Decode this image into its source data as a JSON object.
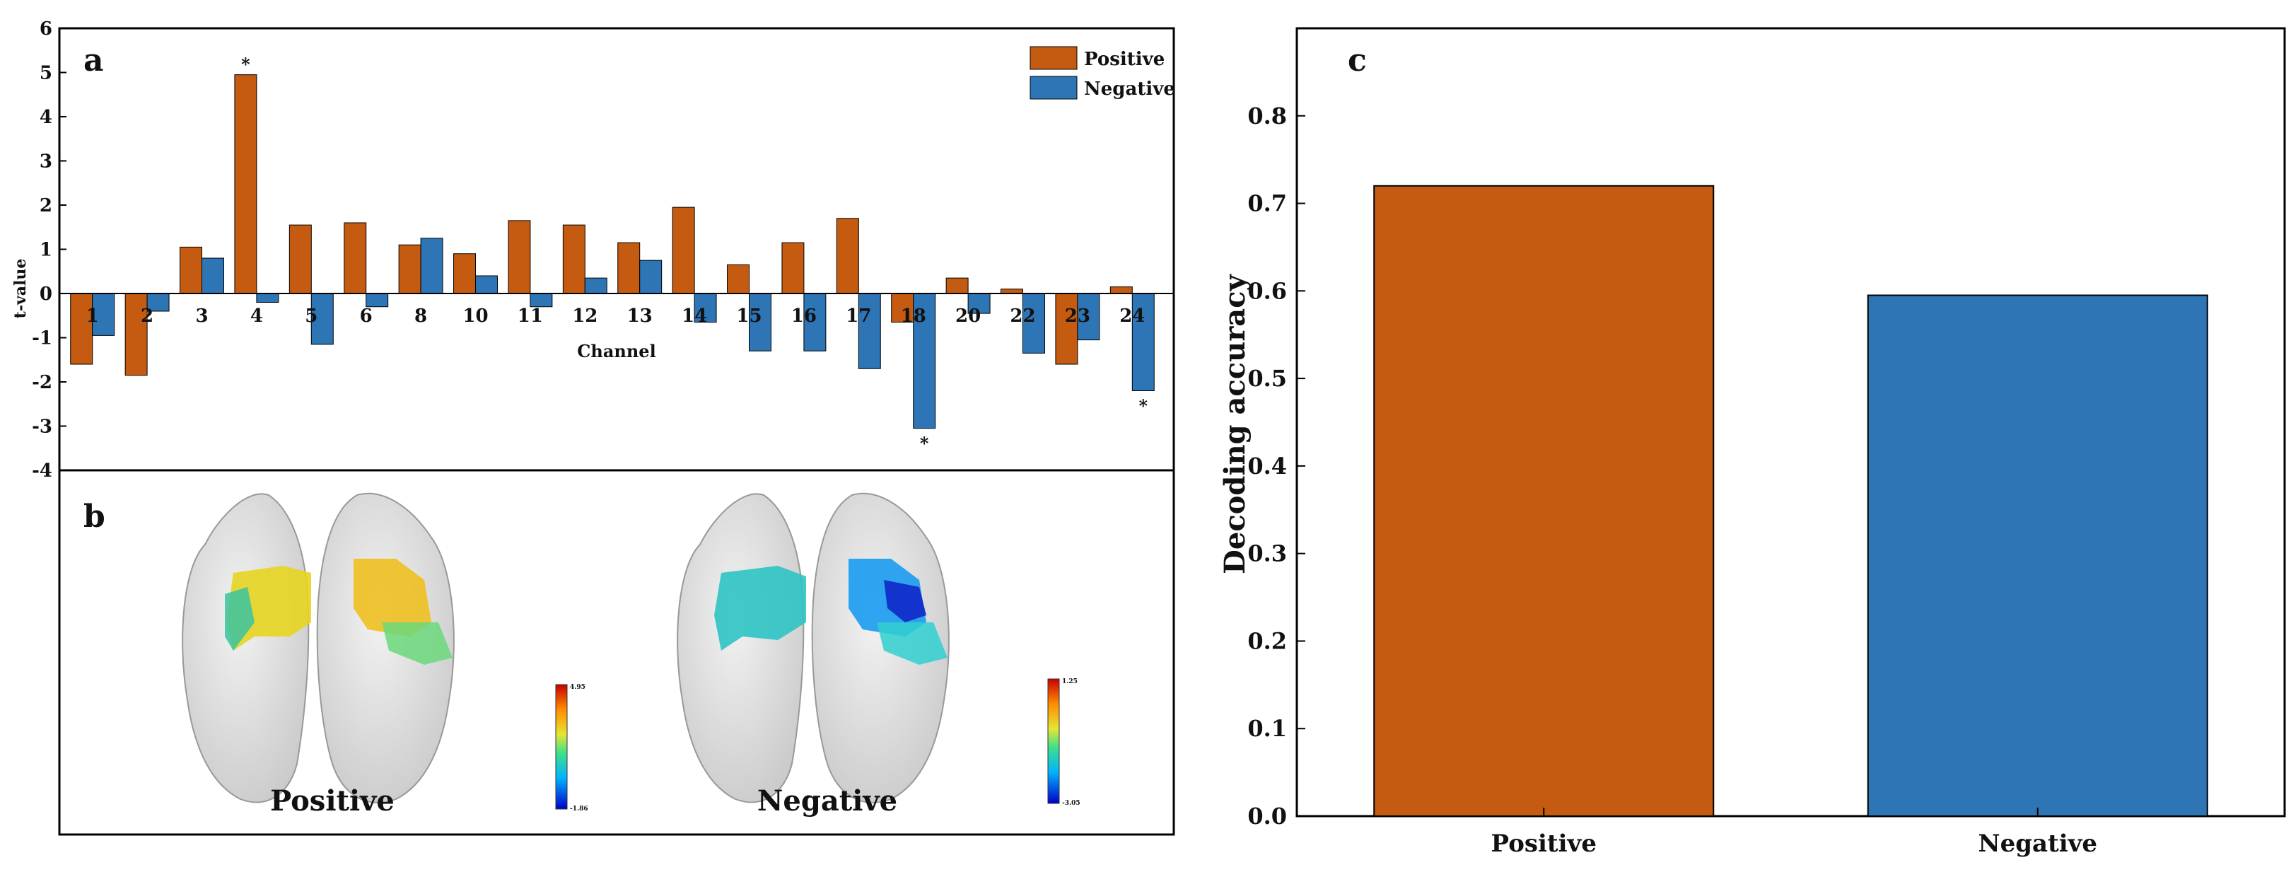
{
  "colors": {
    "positive": "#c55a11",
    "negative": "#2e75b6",
    "axis": "#000000",
    "brain": "#d9d9d9"
  },
  "chart_data": [
    {
      "panel": "a",
      "type": "bar",
      "ylabel": "t-value",
      "xlabel": "Channel",
      "ylim": [
        -4,
        6
      ],
      "yticks": [
        -4,
        -3,
        -2,
        -1,
        0,
        1,
        2,
        3,
        4,
        5,
        6
      ],
      "legend": "top-right",
      "categories": [
        "1",
        "2",
        "3",
        "4",
        "5",
        "6",
        "8",
        "10",
        "11",
        "12",
        "13",
        "14",
        "15",
        "16",
        "17",
        "18",
        "20",
        "22",
        "23",
        "24"
      ],
      "series": [
        {
          "name": "Positive",
          "color": "#c55a11",
          "values": [
            -1.6,
            -1.85,
            1.05,
            4.95,
            1.55,
            1.6,
            1.1,
            0.9,
            1.65,
            1.55,
            1.15,
            1.95,
            0.65,
            1.15,
            1.7,
            -0.65,
            0.35,
            0.1,
            -1.6,
            0.15
          ]
        },
        {
          "name": "Negative",
          "color": "#2e75b6",
          "values": [
            -0.95,
            -0.4,
            0.8,
            -0.2,
            -1.15,
            -0.3,
            1.25,
            0.4,
            -0.3,
            0.35,
            0.75,
            -0.65,
            -1.3,
            -1.3,
            -1.7,
            -3.05,
            -0.45,
            -1.35,
            -1.05,
            -2.2
          ]
        }
      ],
      "annotations": [
        {
          "category": "4",
          "series": "Positive",
          "text": "*"
        },
        {
          "category": "18",
          "series": "Negative",
          "text": "*"
        },
        {
          "category": "24",
          "series": "Negative",
          "text": "*"
        }
      ]
    },
    {
      "panel": "b",
      "type": "other",
      "description_labels": [
        "Positive",
        "Negative"
      ],
      "colorbars": [
        {
          "max": "4.95",
          "min": "-1.86"
        },
        {
          "max": "1.25",
          "min": "-3.05"
        }
      ]
    },
    {
      "panel": "c",
      "type": "bar",
      "ylabel": "Decoding accuracy",
      "ylim": [
        0,
        0.9
      ],
      "yticks": [
        "0.0",
        "0.1",
        "0.2",
        "0.3",
        "0.4",
        "0.5",
        "0.6",
        "0.7",
        "0.8"
      ],
      "categories": [
        "Positive",
        "Negative"
      ],
      "values": [
        0.72,
        0.595
      ],
      "colors": [
        "#c55a11",
        "#2e75b6"
      ]
    }
  ]
}
